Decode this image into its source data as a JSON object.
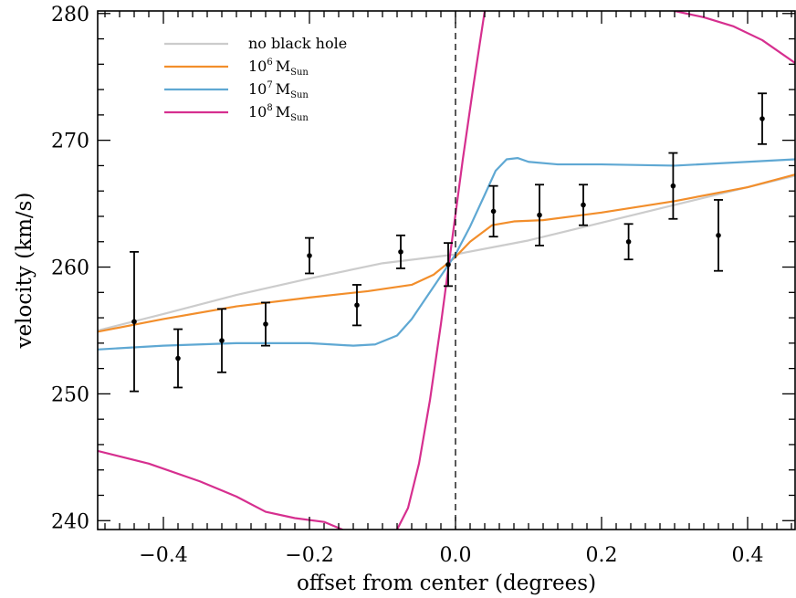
{
  "chart_data": {
    "type": "line",
    "xlabel": "offset from center (degrees)",
    "ylabel": "velocity (km/s)",
    "xlim": [
      -0.49,
      0.465
    ],
    "ylim": [
      239.3,
      280.2
    ],
    "x_ticks": [
      -0.4,
      -0.2,
      0.0,
      0.2,
      0.4
    ],
    "x_tick_labels": [
      "−0.4",
      "−0.2",
      "0.0",
      "0.2",
      "0.4"
    ],
    "y_ticks": [
      240,
      250,
      260,
      270,
      280
    ],
    "y_tick_labels": [
      "240",
      "250",
      "260",
      "270",
      "280"
    ],
    "grid": false,
    "legend_position": "top-left",
    "vline_x": 0.0,
    "series": [
      {
        "name": "no black hole",
        "color": "#cccccc",
        "points": [
          [
            -0.49,
            255.0
          ],
          [
            -0.4,
            256.3
          ],
          [
            -0.3,
            257.8
          ],
          [
            -0.2,
            259.1
          ],
          [
            -0.1,
            260.3
          ],
          [
            0.0,
            261.0
          ],
          [
            0.1,
            262.1
          ],
          [
            0.2,
            263.5
          ],
          [
            0.3,
            264.9
          ],
          [
            0.4,
            266.3
          ],
          [
            0.465,
            267.2
          ]
        ]
      },
      {
        "name": "10^6 M_Sun",
        "label_base": "10",
        "label_exp": "6",
        "label_unit": "M",
        "label_sub": "Sun",
        "color": "#f28e2b",
        "points": [
          [
            -0.49,
            254.9
          ],
          [
            -0.4,
            255.9
          ],
          [
            -0.3,
            256.9
          ],
          [
            -0.2,
            257.6
          ],
          [
            -0.12,
            258.1
          ],
          [
            -0.06,
            258.6
          ],
          [
            -0.03,
            259.4
          ],
          [
            0.0,
            260.8
          ],
          [
            0.02,
            262.0
          ],
          [
            0.05,
            263.3
          ],
          [
            0.08,
            263.6
          ],
          [
            0.12,
            263.7
          ],
          [
            0.2,
            264.3
          ],
          [
            0.3,
            265.2
          ],
          [
            0.4,
            266.3
          ],
          [
            0.465,
            267.3
          ]
        ]
      },
      {
        "name": "10^7 M_Sun",
        "label_base": "10",
        "label_exp": "7",
        "label_unit": "M",
        "label_sub": "Sun",
        "color": "#5fa8d3",
        "points": [
          [
            -0.49,
            253.5
          ],
          [
            -0.4,
            253.8
          ],
          [
            -0.3,
            254.0
          ],
          [
            -0.2,
            254.0
          ],
          [
            -0.14,
            253.8
          ],
          [
            -0.11,
            253.9
          ],
          [
            -0.08,
            254.6
          ],
          [
            -0.06,
            255.9
          ],
          [
            -0.04,
            257.6
          ],
          [
            -0.02,
            259.3
          ],
          [
            0.0,
            261.0
          ],
          [
            0.02,
            263.2
          ],
          [
            0.04,
            265.7
          ],
          [
            0.055,
            267.6
          ],
          [
            0.07,
            268.5
          ],
          [
            0.085,
            268.6
          ],
          [
            0.1,
            268.3
          ],
          [
            0.14,
            268.1
          ],
          [
            0.2,
            268.1
          ],
          [
            0.3,
            268.0
          ],
          [
            0.4,
            268.3
          ],
          [
            0.465,
            268.5
          ]
        ]
      },
      {
        "name": "10^8 M_Sun",
        "label_base": "10",
        "label_exp": "8",
        "label_unit": "M",
        "label_sub": "Sun",
        "color": "#d62f8f",
        "segments": [
          [
            [
              -0.49,
              245.5
            ],
            [
              -0.42,
              244.5
            ],
            [
              -0.35,
              243.1
            ],
            [
              -0.3,
              241.9
            ],
            [
              -0.26,
              240.7
            ],
            [
              -0.22,
              240.2
            ],
            [
              -0.18,
              239.9
            ],
            [
              -0.155,
              239.3
            ]
          ],
          [
            [
              -0.08,
              239.3
            ],
            [
              -0.065,
              241.0
            ],
            [
              -0.05,
              244.5
            ],
            [
              -0.035,
              249.5
            ],
            [
              -0.02,
              255.5
            ],
            [
              -0.005,
              262.0
            ],
            [
              0.01,
              268.5
            ],
            [
              0.025,
              274.5
            ],
            [
              0.04,
              280.2
            ]
          ],
          [
            [
              0.3,
              280.2
            ],
            [
              0.34,
              279.7
            ],
            [
              0.38,
              279.0
            ],
            [
              0.42,
              277.9
            ],
            [
              0.465,
              276.1
            ]
          ]
        ]
      }
    ],
    "measurements": {
      "x": [
        -0.44,
        -0.38,
        -0.32,
        -0.26,
        -0.2,
        -0.135,
        -0.075,
        -0.01,
        0.052,
        0.115,
        0.175,
        0.237,
        0.298,
        0.36,
        0.42
      ],
      "y": [
        255.7,
        252.8,
        254.2,
        255.5,
        260.9,
        257.0,
        261.2,
        260.2,
        264.4,
        264.1,
        264.9,
        262.0,
        266.4,
        262.5,
        271.7
      ],
      "err": [
        5.5,
        2.3,
        2.5,
        1.7,
        1.4,
        1.6,
        1.3,
        1.7,
        2.0,
        2.4,
        1.6,
        1.4,
        2.6,
        2.8,
        2.0
      ]
    }
  }
}
